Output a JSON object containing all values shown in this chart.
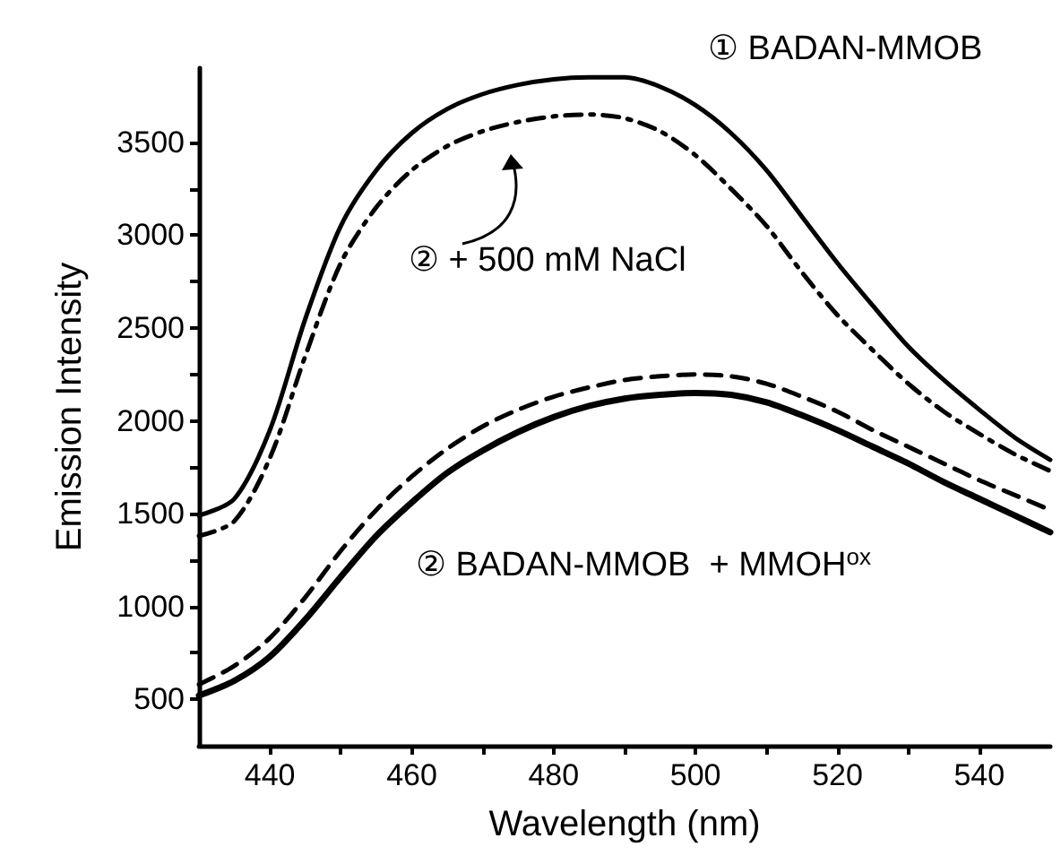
{
  "chart_data": {
    "type": "line",
    "xlabel": "Wavelength (nm)",
    "ylabel": "Emission Intensity",
    "xlim": [
      430,
      550
    ],
    "ylim": [
      250,
      3900
    ],
    "xticks": [
      440,
      {
        "value": 450,
        "label": null
      },
      460,
      {
        "value": 470,
        "label": null
      },
      480,
      {
        "value": 490,
        "label": null
      },
      500,
      {
        "value": 510,
        "label": null
      },
      520,
      {
        "value": 530,
        "label": null
      },
      540
    ],
    "yticks": [
      500,
      {
        "value": 750,
        "label": null
      },
      1000,
      {
        "value": 1250,
        "label": null
      },
      1500,
      {
        "value": 1750,
        "label": null
      },
      2000,
      {
        "value": 2250,
        "label": null
      },
      2500,
      {
        "value": 2750,
        "label": null
      },
      3000,
      {
        "value": 3250,
        "label": null
      },
      3500
    ],
    "x": [
      430,
      435,
      440,
      445,
      450,
      455,
      460,
      465,
      470,
      475,
      480,
      485,
      490,
      495,
      500,
      505,
      510,
      515,
      520,
      525,
      530,
      535,
      540,
      545,
      550
    ],
    "grid": false,
    "legend": false,
    "marker": "none",
    "series": [
      {
        "name": "① BADAN-MMOB",
        "color": "#000000",
        "line_style": "solid",
        "values": [
          1490,
          1580,
          1950,
          2550,
          3050,
          3350,
          3550,
          3680,
          3760,
          3810,
          3840,
          3850,
          3850,
          3800,
          3700,
          3550,
          3350,
          3100,
          2850,
          2620,
          2400,
          2220,
          2060,
          1910,
          1790
        ]
      },
      {
        "name": "② + 500 mM NaCl",
        "color": "#000000",
        "line_style": "dashdot",
        "values": [
          1380,
          1460,
          1800,
          2350,
          2850,
          3150,
          3350,
          3480,
          3560,
          3610,
          3640,
          3650,
          3630,
          3560,
          3430,
          3250,
          3050,
          2800,
          2570,
          2380,
          2200,
          2050,
          1930,
          1820,
          1730
        ]
      },
      {
        "color": "#000000",
        "line_style": "dashed",
        "values": [
          580,
          680,
          830,
          1050,
          1300,
          1520,
          1700,
          1850,
          1970,
          2060,
          2130,
          2180,
          2220,
          2240,
          2250,
          2240,
          2200,
          2130,
          2050,
          1950,
          1860,
          1770,
          1680,
          1600,
          1520
        ]
      },
      {
        "name": "② BADAN-MMOB  + MMOH$^{ox}$",
        "color": "#000000",
        "line_style": "solid",
        "values": [
          520,
          600,
          730,
          930,
          1160,
          1380,
          1560,
          1720,
          1840,
          1940,
          2020,
          2080,
          2120,
          2140,
          2150,
          2140,
          2100,
          2030,
          1950,
          1860,
          1770,
          1670,
          1580,
          1490,
          1400
        ]
      }
    ]
  }
}
